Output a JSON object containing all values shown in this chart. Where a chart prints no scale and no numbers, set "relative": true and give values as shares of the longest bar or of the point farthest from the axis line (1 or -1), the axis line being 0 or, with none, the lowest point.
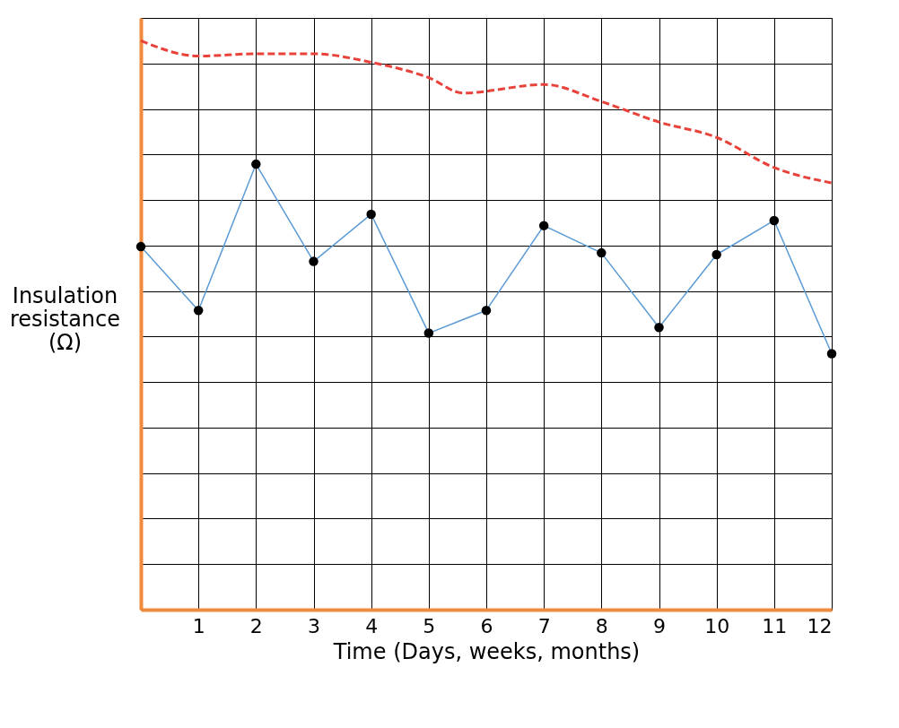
{
  "chart_data": {
    "type": "line",
    "relative": true,
    "xlabel": "Time (Days, weeks, months)",
    "ylabel": "Insulation resistance (Ω)",
    "xlim": [
      0,
      12
    ],
    "xticks": [
      1,
      2,
      3,
      4,
      5,
      6,
      7,
      8,
      9,
      10,
      11,
      12
    ],
    "grid": true,
    "series": [
      {
        "color": "#5b9bd5",
        "marker": "circle",
        "line_style": "solid",
        "x": [
          0,
          1,
          2,
          3,
          4,
          5,
          6,
          7,
          8,
          9,
          10,
          11,
          12
        ],
        "values": [
          0.638,
          0.526,
          0.783,
          0.612,
          0.695,
          0.486,
          0.526,
          0.675,
          0.627,
          0.496,
          0.624,
          0.684,
          0.45
        ]
      },
      {
        "color": "#e8423a",
        "marker": "none",
        "line_style": "dashed",
        "x": [
          0,
          1,
          2,
          3,
          4,
          5,
          5.6,
          7,
          8,
          9,
          10,
          11,
          12
        ],
        "values": [
          1.0,
          0.973,
          0.977,
          0.977,
          0.962,
          0.935,
          0.908,
          0.923,
          0.893,
          0.857,
          0.83,
          0.777,
          0.75
        ]
      }
    ]
  }
}
